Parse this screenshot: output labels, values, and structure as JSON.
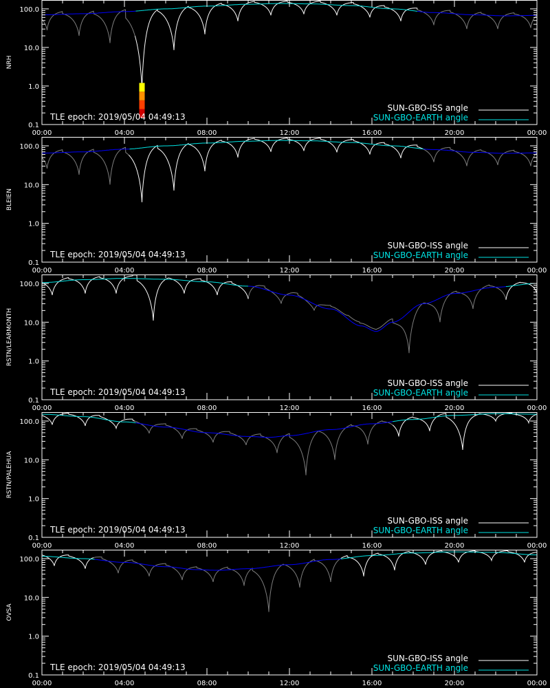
{
  "colors": {
    "background": "#000000",
    "axis": "#ffffff",
    "iss_day": "#ffffff",
    "iss_night": "#7f7f7f",
    "earth_day": "#00e5e5",
    "earth_night": "#0000ff"
  },
  "legend": {
    "iss_label": "SUN-GBO-ISS angle",
    "earth_label": "SUN-GBO-EARTH angle"
  },
  "epoch_text": "TLE epoch: 2019/05/04 04:49:13",
  "x_ticks": [
    "00:00",
    "04:00",
    "08:00",
    "12:00",
    "16:00",
    "20:00",
    "00:00"
  ],
  "y_ticks": [
    "0.1",
    "1.0",
    "10.0",
    "100.0"
  ],
  "chart_data": [
    {
      "type": "line",
      "station": "NRH",
      "ylabel": "NRH",
      "ylim": [
        0.1,
        170
      ],
      "yscale": "log",
      "xlim_hours": [
        0,
        24
      ],
      "earth_angle": {
        "night_hours": [
          [
            0,
            4.5
          ],
          [
            18.2,
            24
          ]
        ],
        "points": [
          [
            0,
            70
          ],
          [
            2,
            75
          ],
          [
            4,
            85
          ],
          [
            6,
            100
          ],
          [
            8,
            118
          ],
          [
            10,
            132
          ],
          [
            11.5,
            138
          ],
          [
            13,
            135
          ],
          [
            15,
            122
          ],
          [
            17,
            100
          ],
          [
            19,
            80
          ],
          [
            21,
            70
          ],
          [
            22.5,
            66
          ],
          [
            24,
            68
          ]
        ]
      },
      "iss_passes": [
        {
          "hour": 0.25,
          "min_angle": 28
        },
        {
          "hour": 1.8,
          "min_angle": 20
        },
        {
          "hour": 3.3,
          "min_angle": 13
        },
        {
          "hour": 4.85,
          "min_angle": 0.8
        },
        {
          "hour": 6.4,
          "min_angle": 8.5
        },
        {
          "hour": 7.9,
          "min_angle": 22
        },
        {
          "hour": 9.5,
          "min_angle": 48
        },
        {
          "hour": 11.1,
          "min_angle": 68
        },
        {
          "hour": 12.7,
          "min_angle": 73
        },
        {
          "hour": 14.3,
          "min_angle": 68
        },
        {
          "hour": 15.9,
          "min_angle": 60
        },
        {
          "hour": 17.4,
          "min_angle": 48
        },
        {
          "hour": 19.0,
          "min_angle": 38
        },
        {
          "hour": 20.6,
          "min_angle": 30
        },
        {
          "hour": 22.1,
          "min_angle": 30
        },
        {
          "hour": 23.7,
          "min_angle": 32
        }
      ],
      "flare_marker": {
        "hour": 4.85,
        "bottom": 0.15,
        "top": 1.2,
        "colors": [
          "#d00000",
          "#ff4000",
          "#ff9000",
          "#ffff00"
        ]
      }
    },
    {
      "type": "line",
      "station": "BLEIEN",
      "ylabel": "BLEIEN",
      "ylim": [
        0.1,
        170
      ],
      "yscale": "log",
      "xlim_hours": [
        0,
        24
      ],
      "earth_angle": {
        "night_hours": [
          [
            0,
            4.2
          ],
          [
            18.5,
            24
          ]
        ],
        "points": [
          [
            0,
            65
          ],
          [
            2,
            70
          ],
          [
            4,
            82
          ],
          [
            6,
            100
          ],
          [
            8,
            118
          ],
          [
            10,
            132
          ],
          [
            11.5,
            138
          ],
          [
            13,
            135
          ],
          [
            15,
            122
          ],
          [
            17,
            100
          ],
          [
            19,
            80
          ],
          [
            21,
            68
          ],
          [
            22.5,
            64
          ],
          [
            24,
            66
          ]
        ]
      },
      "iss_passes": [
        {
          "hour": 0.25,
          "min_angle": 26
        },
        {
          "hour": 1.8,
          "min_angle": 18
        },
        {
          "hour": 3.3,
          "min_angle": 10
        },
        {
          "hour": 4.85,
          "min_angle": 3.5
        },
        {
          "hour": 6.4,
          "min_angle": 7
        },
        {
          "hour": 7.9,
          "min_angle": 22
        },
        {
          "hour": 9.5,
          "min_angle": 50
        },
        {
          "hour": 11.1,
          "min_angle": 70
        },
        {
          "hour": 12.7,
          "min_angle": 74
        },
        {
          "hour": 14.3,
          "min_angle": 68
        },
        {
          "hour": 15.9,
          "min_angle": 60
        },
        {
          "hour": 17.4,
          "min_angle": 48
        },
        {
          "hour": 19.0,
          "min_angle": 38
        },
        {
          "hour": 20.6,
          "min_angle": 30
        },
        {
          "hour": 22.1,
          "min_angle": 32
        },
        {
          "hour": 23.7,
          "min_angle": 30
        }
      ]
    },
    {
      "type": "line",
      "station": "RSTN/LEARMONTH",
      "ylabel": "RSTN/LEARMONTH",
      "ylim": [
        0.1,
        170
      ],
      "yscale": "log",
      "xlim_hours": [
        0,
        24
      ],
      "earth_angle": {
        "night_hours": [
          [
            10,
            22.5
          ]
        ],
        "points": [
          [
            0,
            105
          ],
          [
            2,
            125
          ],
          [
            4,
            135
          ],
          [
            6,
            128
          ],
          [
            8,
            110
          ],
          [
            10,
            85
          ],
          [
            12,
            50
          ],
          [
            14,
            22
          ],
          [
            15.5,
            8
          ],
          [
            16.2,
            5.8
          ],
          [
            17,
            10
          ],
          [
            18.5,
            30
          ],
          [
            20,
            55
          ],
          [
            22,
            80
          ],
          [
            24,
            100
          ]
        ]
      },
      "iss_passes": [
        {
          "hour": 0.5,
          "min_angle": 50
        },
        {
          "hour": 2.1,
          "min_angle": 55
        },
        {
          "hour": 3.6,
          "min_angle": 55
        },
        {
          "hour": 5.4,
          "min_angle": 11
        },
        {
          "hour": 6.9,
          "min_angle": 55
        },
        {
          "hour": 8.5,
          "min_angle": 50
        },
        {
          "hour": 10.0,
          "min_angle": 40
        },
        {
          "hour": 11.6,
          "min_angle": 30
        },
        {
          "hour": 13.2,
          "min_angle": 20
        },
        {
          "hour": 14.8,
          "min_angle": 15
        },
        {
          "hour": 16.2,
          "min_angle": 6.5
        },
        {
          "hour": 17.8,
          "min_angle": 1.6
        },
        {
          "hour": 19.3,
          "min_angle": 10
        },
        {
          "hour": 20.9,
          "min_angle": 22
        },
        {
          "hour": 22.5,
          "min_angle": 38
        },
        {
          "hour": 24.0,
          "min_angle": 55
        }
      ]
    },
    {
      "type": "line",
      "station": "RSTN/PALEHUA",
      "ylabel": "RSTN/PALEHUA",
      "ylim": [
        0.1,
        170
      ],
      "yscale": "log",
      "xlim_hours": [
        0,
        24
      ],
      "earth_angle": {
        "night_hours": [
          [
            4.5,
            17
          ]
        ],
        "points": [
          [
            0,
            150
          ],
          [
            2,
            130
          ],
          [
            4,
            95
          ],
          [
            6,
            70
          ],
          [
            8,
            50
          ],
          [
            10,
            40
          ],
          [
            11,
            38
          ],
          [
            12,
            42
          ],
          [
            14,
            60
          ],
          [
            16,
            85
          ],
          [
            18,
            110
          ],
          [
            20,
            140
          ],
          [
            22,
            155
          ],
          [
            24,
            150
          ]
        ]
      },
      "iss_passes": [
        {
          "hour": 0.5,
          "min_angle": 80
        },
        {
          "hour": 2.1,
          "min_angle": 75
        },
        {
          "hour": 3.6,
          "min_angle": 65
        },
        {
          "hour": 5.2,
          "min_angle": 48
        },
        {
          "hour": 6.8,
          "min_angle": 35
        },
        {
          "hour": 8.3,
          "min_angle": 28
        },
        {
          "hour": 9.9,
          "min_angle": 24
        },
        {
          "hour": 11.4,
          "min_angle": 15
        },
        {
          "hour": 12.8,
          "min_angle": 4
        },
        {
          "hour": 14.2,
          "min_angle": 10
        },
        {
          "hour": 15.8,
          "min_angle": 25
        },
        {
          "hour": 17.3,
          "min_angle": 40
        },
        {
          "hour": 18.8,
          "min_angle": 55
        },
        {
          "hour": 20.4,
          "min_angle": 18
        },
        {
          "hour": 22.0,
          "min_angle": 100
        },
        {
          "hour": 23.6,
          "min_angle": 90
        }
      ]
    },
    {
      "type": "line",
      "station": "OVSA",
      "ylabel": "OVSA",
      "ylim": [
        0.1,
        170
      ],
      "yscale": "log",
      "xlim_hours": [
        0,
        24
      ],
      "earth_angle": {
        "night_hours": [
          [
            2.5,
            14.5
          ]
        ],
        "points": [
          [
            0,
            115
          ],
          [
            2,
            100
          ],
          [
            4,
            80
          ],
          [
            6,
            62
          ],
          [
            7.5,
            52
          ],
          [
            8.5,
            50
          ],
          [
            10,
            55
          ],
          [
            12,
            70
          ],
          [
            14,
            95
          ],
          [
            16,
            120
          ],
          [
            18,
            140
          ],
          [
            20,
            150
          ],
          [
            22,
            145
          ],
          [
            24,
            125
          ]
        ]
      },
      "iss_passes": [
        {
          "hour": 0.6,
          "min_angle": 65
        },
        {
          "hour": 2.1,
          "min_angle": 55
        },
        {
          "hour": 3.7,
          "min_angle": 42
        },
        {
          "hour": 5.2,
          "min_angle": 35
        },
        {
          "hour": 6.8,
          "min_angle": 28
        },
        {
          "hour": 8.3,
          "min_angle": 25
        },
        {
          "hour": 9.8,
          "min_angle": 20
        },
        {
          "hour": 11.0,
          "min_angle": 4.2
        },
        {
          "hour": 12.5,
          "min_angle": 18
        },
        {
          "hour": 14.0,
          "min_angle": 25
        },
        {
          "hour": 15.6,
          "min_angle": 35
        },
        {
          "hour": 17.1,
          "min_angle": 50
        },
        {
          "hour": 18.6,
          "min_angle": 70
        },
        {
          "hour": 20.2,
          "min_angle": 80
        },
        {
          "hour": 21.8,
          "min_angle": 90
        },
        {
          "hour": 23.4,
          "min_angle": 80
        }
      ]
    }
  ]
}
